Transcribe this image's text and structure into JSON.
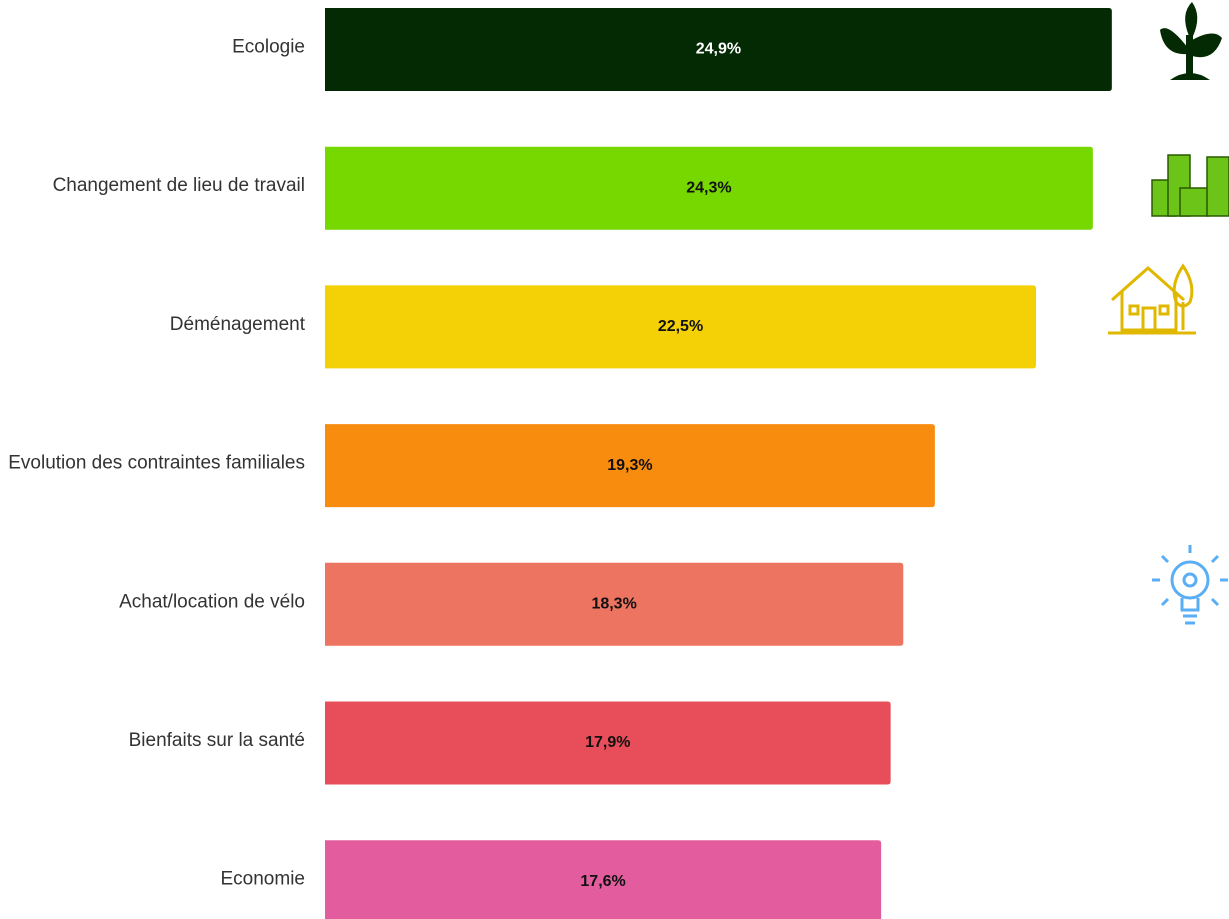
{
  "chart_data": {
    "type": "bar",
    "orientation": "horizontal",
    "categories": [
      "Ecologie",
      "Changement de lieu de travail",
      "Déménagement",
      "Evolution des contraintes familiales",
      "Achat/location de vélo",
      "Bienfaits sur la santé",
      "Economie"
    ],
    "values": [
      24.9,
      24.3,
      22.5,
      19.3,
      18.3,
      17.9,
      17.6
    ],
    "value_labels": [
      "24,9%",
      "24,3%",
      "22,5%",
      "19,3%",
      "18,3%",
      "17,9%",
      "17,6%"
    ],
    "colors": [
      "#032a03",
      "#77d800",
      "#f4d106",
      "#f88c0f",
      "#ed7461",
      "#e84d5a",
      "#e35d9e"
    ],
    "xlim": [
      0,
      25
    ]
  }
}
